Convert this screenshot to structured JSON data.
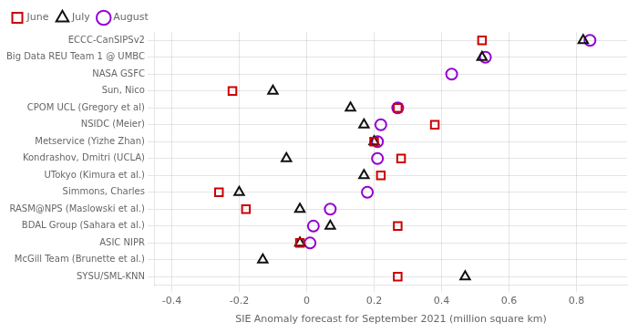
{
  "chart_data": {
    "type": "dot",
    "orientation": "horizontal",
    "xlabel": "SIE Anomaly forecast for September 2021 (million square km)",
    "categories": [
      "ECCC-CanSIPSv2",
      "Big Data REU Team 1 @ UMBC",
      "NASA GSFC",
      "Sun, Nico",
      "CPOM UCL (Gregory et al)",
      "NSIDC (Meier)",
      "Metservice (Yizhe Zhan)",
      "Kondrashov, Dmitri (UCLA)",
      "UTokyo (Kimura et al.)",
      "Simmons, Charles",
      "RASM@NPS (Maslowski et al.)",
      "BDAL Group (Sahara et al.)",
      "ASIC NIPR",
      "McGill Team (Brunette et al.)",
      "SYSU/SML-KNN"
    ],
    "series": [
      {
        "name": "June",
        "color": "#cc0000",
        "marker": "square",
        "values": [
          0.52,
          null,
          null,
          -0.22,
          0.27,
          0.38,
          0.2,
          0.28,
          0.22,
          -0.26,
          -0.18,
          0.27,
          -0.02,
          null,
          0.27
        ]
      },
      {
        "name": "July",
        "color": "#111111",
        "marker": "triangle",
        "values": [
          0.82,
          0.52,
          null,
          -0.1,
          0.13,
          0.17,
          0.2,
          -0.06,
          0.17,
          -0.2,
          -0.02,
          0.07,
          -0.02,
          -0.13,
          0.47
        ]
      },
      {
        "name": "August",
        "color": "#9400D3",
        "marker": "circle",
        "values": [
          0.84,
          0.53,
          0.43,
          null,
          0.27,
          0.22,
          0.21,
          0.21,
          null,
          0.18,
          0.07,
          0.02,
          0.01,
          null,
          null
        ]
      }
    ],
    "xlim": [
      -0.45,
      0.95
    ],
    "xticks": [
      -0.4,
      -0.2,
      0.0,
      0.2,
      0.4,
      0.6,
      0.8
    ],
    "grid": true,
    "legend": "upper left"
  }
}
